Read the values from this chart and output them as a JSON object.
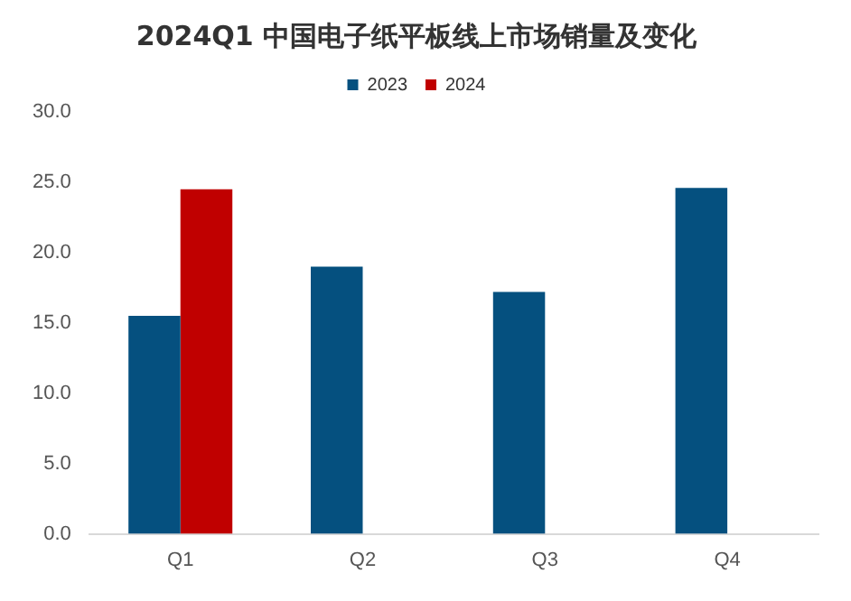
{
  "chart_data": {
    "type": "bar",
    "title": "2024Q1 中国电子纸平板线上市场销量及变化",
    "categories": [
      "Q1",
      "Q2",
      "Q3",
      "Q4"
    ],
    "series": [
      {
        "name": "2023",
        "color": "#05507f",
        "values": [
          15.5,
          19.0,
          17.2,
          24.6
        ]
      },
      {
        "name": "2024",
        "color": "#c00000",
        "values": [
          24.5,
          null,
          null,
          null
        ]
      }
    ],
    "ylim": [
      0,
      30
    ],
    "yticks": [
      {
        "value": 0,
        "label": "0.0"
      },
      {
        "value": 5,
        "label": "5.0"
      },
      {
        "value": 10,
        "label": "10.0"
      },
      {
        "value": 15,
        "label": "15.0"
      },
      {
        "value": 20,
        "label": "20.0"
      },
      {
        "value": 25,
        "label": "25.0"
      },
      {
        "value": 30,
        "label": "30.0"
      }
    ],
    "grid": false,
    "legend": "top"
  }
}
